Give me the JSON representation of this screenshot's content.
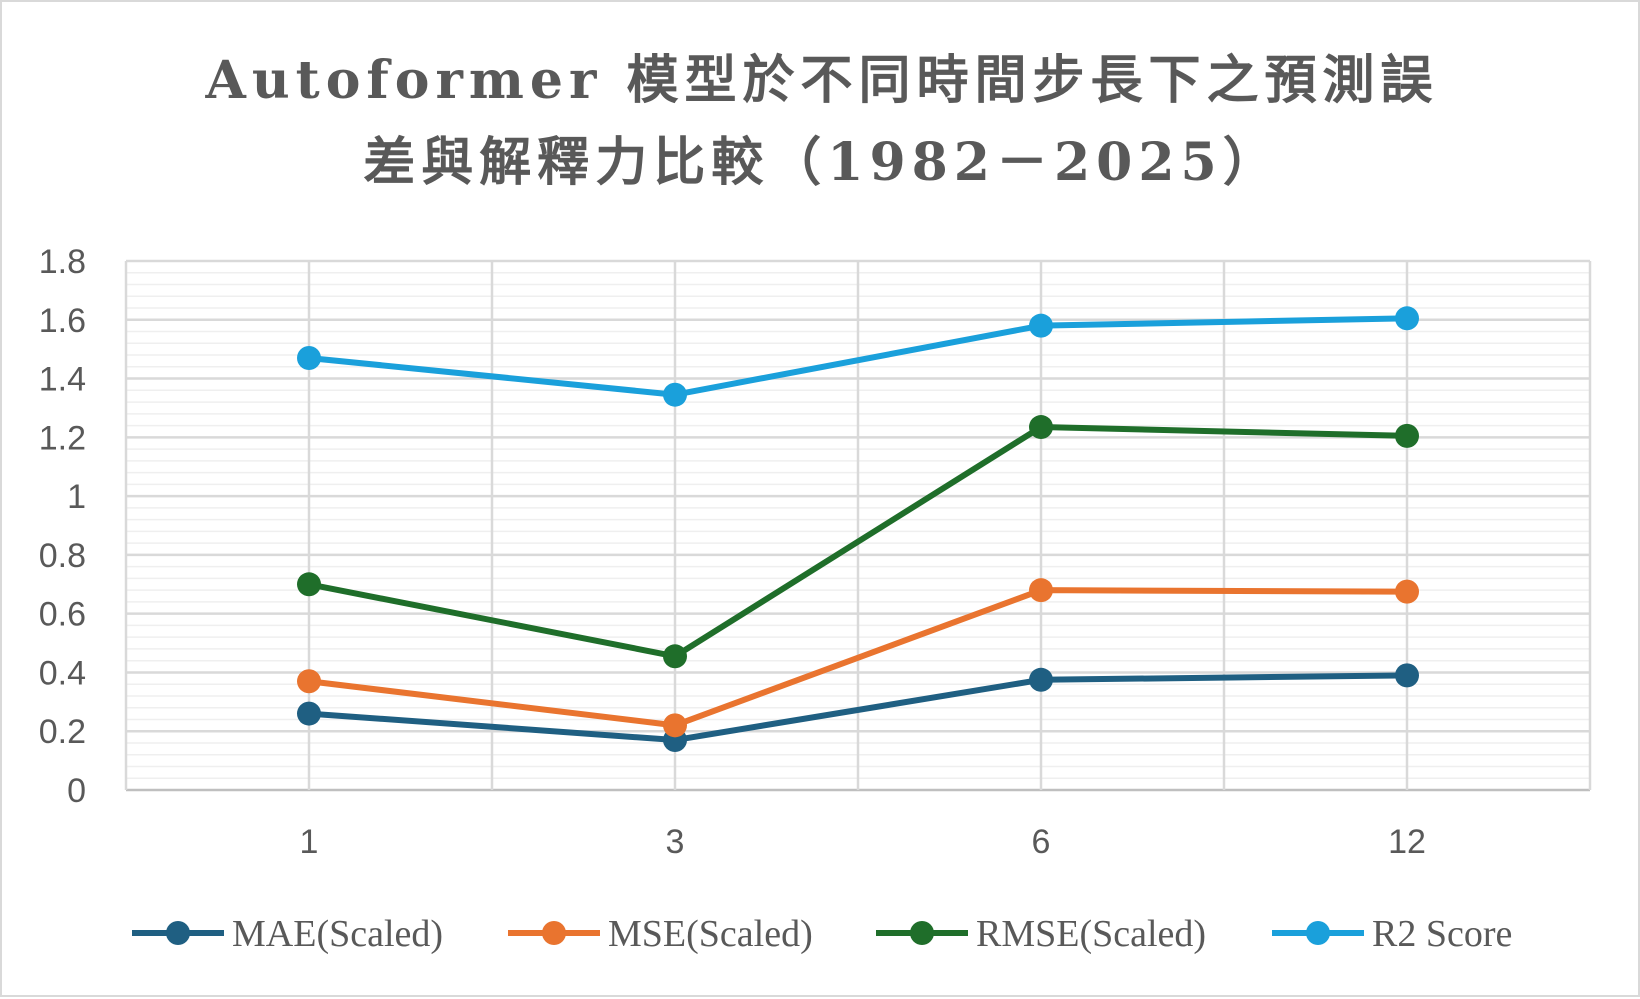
{
  "chart_data": {
    "type": "line",
    "title_line1": "Autoformer 模型於不同時間步長下之預測誤",
    "title_line2": "差與解釋力比較（1982－2025）",
    "categories": [
      "1",
      "3",
      "6",
      "12"
    ],
    "ylim": [
      0,
      1.8
    ],
    "yticks": [
      "0",
      "0.2",
      "0.4",
      "0.6",
      "0.8",
      "1",
      "1.2",
      "1.4",
      "1.6",
      "1.8"
    ],
    "grid": true,
    "legend_position": "bottom",
    "series": [
      {
        "name": "MAE(Scaled)",
        "color": "#1f5f82",
        "values": [
          0.26,
          0.17,
          0.375,
          0.39
        ]
      },
      {
        "name": "MSE(Scaled)",
        "color": "#e9742f",
        "values": [
          0.37,
          0.22,
          0.68,
          0.675
        ]
      },
      {
        "name": "RMSE(Scaled)",
        "color": "#1f6e2a",
        "values": [
          0.7,
          0.455,
          1.235,
          1.205
        ]
      },
      {
        "name": "R2 Score",
        "color": "#1aa0db",
        "values": [
          1.47,
          1.345,
          1.58,
          1.605
        ]
      }
    ]
  }
}
